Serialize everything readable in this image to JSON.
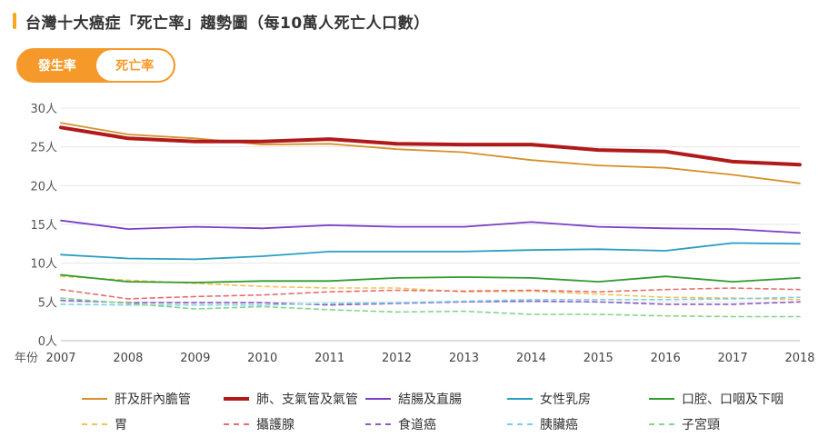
{
  "header": {
    "title": "台灣十大癌症「死亡率」趨勢圖（每10萬人死亡人口數）",
    "accent_color": "#f5a623"
  },
  "toggle": {
    "options": [
      "發生率",
      "死亡率"
    ],
    "selected": "發生率",
    "accent_color": "#f59a2a"
  },
  "chart_data": {
    "type": "line",
    "x": [
      2007,
      2008,
      2009,
      2010,
      2011,
      2012,
      2013,
      2014,
      2015,
      2016,
      2017,
      2018
    ],
    "x_axis_label": "年份",
    "y_unit": "人",
    "ylim": [
      0,
      30
    ],
    "yticks": [
      0,
      5,
      10,
      15,
      20,
      25,
      30
    ],
    "grid": true,
    "legend_position": "bottom",
    "series": [
      {
        "name": "肝及肝內膽管",
        "color": "#d4912a",
        "style": "solid",
        "width": 1.8,
        "values": [
          28.1,
          26.6,
          26.1,
          25.3,
          25.4,
          24.7,
          24.3,
          23.3,
          22.6,
          22.3,
          21.4,
          20.3
        ]
      },
      {
        "name": "肺、支氣管及氣管",
        "color": "#b11a1a",
        "style": "solid",
        "width": 4,
        "values": [
          27.5,
          26.1,
          25.7,
          25.7,
          26.0,
          25.4,
          25.3,
          25.3,
          24.6,
          24.4,
          23.1,
          22.7
        ]
      },
      {
        "name": "結腸及直腸",
        "color": "#7b3fc4",
        "style": "solid",
        "width": 1.8,
        "values": [
          15.5,
          14.4,
          14.7,
          14.5,
          14.9,
          14.7,
          14.7,
          15.3,
          14.7,
          14.5,
          14.4,
          13.9
        ]
      },
      {
        "name": "女性乳房",
        "color": "#2a9ec0",
        "style": "solid",
        "width": 1.8,
        "values": [
          11.1,
          10.6,
          10.5,
          10.9,
          11.5,
          11.5,
          11.5,
          11.7,
          11.8,
          11.6,
          12.6,
          12.5
        ]
      },
      {
        "name": "口腔、口咽及下咽",
        "color": "#2e9b2e",
        "style": "solid",
        "width": 1.8,
        "values": [
          8.5,
          7.6,
          7.5,
          7.7,
          7.7,
          8.1,
          8.2,
          8.1,
          7.6,
          8.3,
          7.6,
          8.1
        ]
      },
      {
        "name": "胃",
        "color": "#f5c15a",
        "style": "dashed",
        "width": 1.6,
        "values": [
          8.3,
          7.8,
          7.4,
          7.0,
          6.8,
          6.8,
          6.3,
          6.4,
          6.0,
          5.6,
          5.5,
          5.3
        ]
      },
      {
        "name": "攝護腺",
        "color": "#e86e6e",
        "style": "dashed",
        "width": 1.6,
        "values": [
          6.6,
          5.4,
          5.7,
          5.9,
          6.3,
          6.5,
          6.4,
          6.5,
          6.3,
          6.6,
          6.8,
          6.6
        ]
      },
      {
        "name": "食道癌",
        "color": "#8a5bc9",
        "style": "dashed",
        "width": 1.6,
        "values": [
          5.2,
          4.9,
          4.9,
          4.9,
          4.6,
          4.8,
          5.0,
          5.1,
          5.0,
          4.7,
          4.7,
          5.0
        ]
      },
      {
        "name": "胰臟癌",
        "color": "#7fd0e6",
        "style": "dashed",
        "width": 1.6,
        "values": [
          4.7,
          4.6,
          4.6,
          4.6,
          4.8,
          4.9,
          5.1,
          5.3,
          5.3,
          5.3,
          5.4,
          5.6
        ]
      },
      {
        "name": "子宮頸",
        "color": "#86d48a",
        "style": "dashed",
        "width": 1.6,
        "values": [
          5.5,
          4.8,
          4.1,
          4.4,
          4.0,
          3.7,
          3.8,
          3.4,
          3.4,
          3.2,
          3.1,
          3.1
        ]
      }
    ]
  }
}
